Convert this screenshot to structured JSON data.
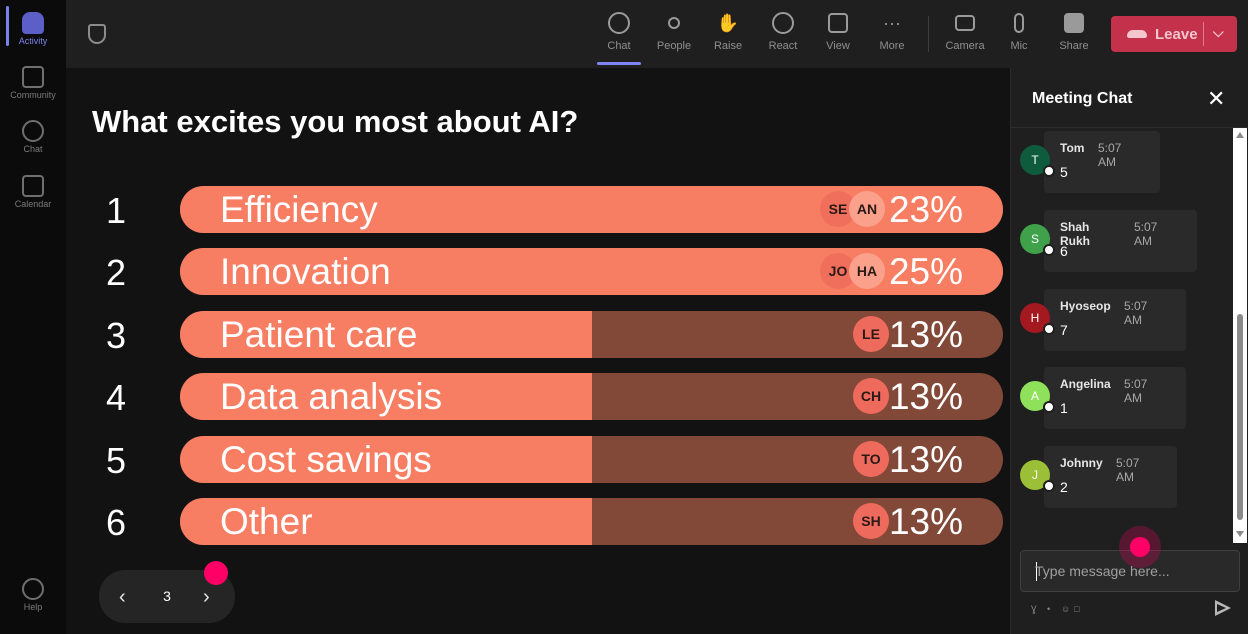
{
  "rail": {
    "items": [
      {
        "label": "Activity",
        "icon": "bell-icon"
      },
      {
        "label": "Community",
        "icon": "community-icon"
      },
      {
        "label": "Chat",
        "icon": "chat-icon"
      },
      {
        "label": "Calendar",
        "icon": "calendar-icon"
      },
      {
        "label": "Help",
        "icon": "help-icon"
      }
    ]
  },
  "toolbar": {
    "buttons": [
      {
        "label": "Chat",
        "icon": "chat-icon"
      },
      {
        "label": "People",
        "icon": "people-icon"
      },
      {
        "label": "Raise",
        "icon": "hand-icon"
      },
      {
        "label": "React",
        "icon": "smiley-icon"
      },
      {
        "label": "View",
        "icon": "grid-icon"
      },
      {
        "label": "More",
        "icon": "more-icon"
      },
      {
        "label": "Camera",
        "icon": "camera-off-icon"
      },
      {
        "label": "Mic",
        "icon": "mic-icon"
      },
      {
        "label": "Share",
        "icon": "share-icon"
      }
    ],
    "leave_label": "Leave",
    "colors": {
      "leave": "#c4314b",
      "active_underline": "#7f85f5"
    }
  },
  "poll": {
    "question": "What excites you most about AI?",
    "options": [
      {
        "rank": "1",
        "label": "Efficiency",
        "percent_text": "23%",
        "fill": 1.0,
        "avatars": [
          "SE",
          "AN"
        ]
      },
      {
        "rank": "2",
        "label": "Innovation",
        "percent_text": "25%",
        "fill": 1.0,
        "avatars": [
          "JO",
          "HA"
        ]
      },
      {
        "rank": "3",
        "label": "Patient care",
        "percent_text": "13%",
        "fill": 0.5,
        "avatars": [
          "LE"
        ]
      },
      {
        "rank": "4",
        "label": "Data analysis",
        "percent_text": "13%",
        "fill": 0.5,
        "avatars": [
          "CH"
        ]
      },
      {
        "rank": "5",
        "label": "Cost savings",
        "percent_text": "13%",
        "fill": 0.5,
        "avatars": [
          "TO"
        ]
      },
      {
        "rank": "6",
        "label": "Other",
        "percent_text": "13%",
        "fill": 0.5,
        "avatars": [
          "SH"
        ]
      }
    ],
    "colors": {
      "bar_fill": "#f77e63",
      "bar_track": "#824838"
    },
    "pager": {
      "page": "3"
    }
  },
  "chat": {
    "title": "Meeting Chat",
    "messages": [
      {
        "initial": "T",
        "name": "Tom",
        "time": "5:07 AM",
        "text": "5",
        "color": "#0e5c3d"
      },
      {
        "initial": "S",
        "name": "Shah Rukh",
        "time": "5:07 AM",
        "text": "6",
        "color": "#3fa24a"
      },
      {
        "initial": "H",
        "name": "Hyoseop",
        "time": "5:07 AM",
        "text": "7",
        "color": "#a4181f"
      },
      {
        "initial": "A",
        "name": "Angelina",
        "time": "5:07 AM",
        "text": "1",
        "color": "#8fe05a"
      },
      {
        "initial": "J",
        "name": "Johnny",
        "time": "5:07 AM",
        "text": "2",
        "color": "#9bbf36"
      }
    ],
    "compose_placeholder": "Type message here..."
  }
}
